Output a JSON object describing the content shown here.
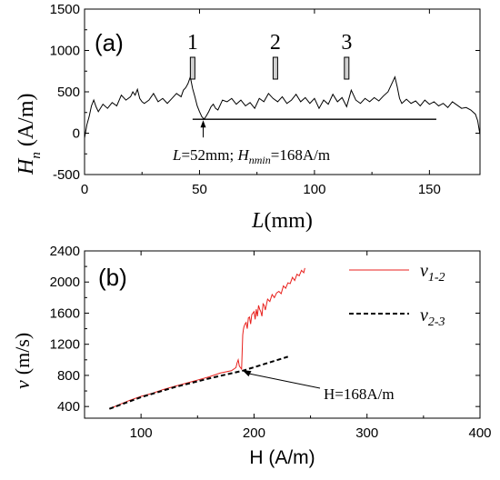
{
  "chart_data": [
    {
      "panel_label": "(a)",
      "type": "line",
      "xlabel": "L",
      "xlabel_unit": "(mm)",
      "ylabel_main": "H",
      "ylabel_sub": "n",
      "ylabel_unit": "(A/m)",
      "xlim": [
        0,
        172
      ],
      "ylim": [
        -500,
        1500
      ],
      "xticks": [
        "0",
        "50",
        "100",
        "150"
      ],
      "yticks": [
        "-500",
        "0",
        "500",
        "1000",
        "1500"
      ],
      "markers": [
        {
          "label": "1",
          "x": 47
        },
        {
          "label": "2",
          "x": 83
        },
        {
          "label": "3",
          "x": 114
        }
      ],
      "baseline": {
        "x_start": 47,
        "x_end": 153,
        "y": 168
      },
      "annotation": {
        "text_L": "L",
        "text_eq1": "=52mm; ",
        "text_H": "H",
        "text_sub": "nmin",
        "text_eq2": "=168A/m",
        "x": 52,
        "y": 168
      },
      "series": [
        {
          "x": [
            0,
            1,
            2,
            3,
            4,
            5,
            6,
            8,
            10,
            12,
            14,
            16,
            18,
            20,
            21,
            22,
            23,
            24,
            25,
            26,
            28,
            30,
            32,
            34,
            36,
            38,
            40,
            42,
            43,
            44,
            45,
            46,
            47,
            48,
            49,
            50,
            51,
            52,
            53,
            54,
            55,
            56,
            57,
            58,
            60,
            62,
            64,
            66,
            68,
            70,
            72,
            74,
            76,
            78,
            80,
            82,
            84,
            86,
            88,
            90,
            92,
            94,
            96,
            98,
            100,
            102,
            104,
            106,
            108,
            110,
            112,
            114,
            116,
            118,
            120,
            122,
            124,
            126,
            128,
            130,
            132,
            134,
            135,
            136,
            137,
            138,
            140,
            142,
            144,
            146,
            148,
            150,
            152,
            154,
            156,
            158,
            160,
            162,
            164,
            166,
            168,
            170,
            171,
            172
          ],
          "y": [
            -60,
            100,
            200,
            330,
            400,
            320,
            260,
            350,
            300,
            370,
            330,
            460,
            400,
            440,
            500,
            460,
            530,
            420,
            380,
            360,
            400,
            480,
            380,
            420,
            360,
            420,
            480,
            440,
            520,
            550,
            600,
            680,
            540,
            440,
            330,
            260,
            200,
            170,
            210,
            260,
            320,
            350,
            300,
            280,
            400,
            380,
            420,
            350,
            400,
            330,
            370,
            300,
            420,
            380,
            480,
            420,
            380,
            440,
            360,
            400,
            470,
            380,
            430,
            360,
            420,
            300,
            400,
            350,
            470,
            380,
            430,
            320,
            520,
            400,
            360,
            420,
            380,
            430,
            390,
            450,
            500,
            620,
            680,
            560,
            420,
            360,
            410,
            360,
            390,
            330,
            400,
            350,
            380,
            330,
            360,
            310,
            380,
            340,
            300,
            310,
            280,
            230,
            150,
            -20
          ]
        }
      ]
    },
    {
      "panel_label": "(b)",
      "type": "line",
      "xlabel": "H (A/m)",
      "ylabel_main": "v",
      "ylabel_unit": "(m/s)",
      "xlim": [
        50,
        400
      ],
      "ylim": [
        250,
        2400
      ],
      "xticks": [
        "100",
        "200",
        "300",
        "400"
      ],
      "yticks": [
        "400",
        "800",
        "1200",
        "1600",
        "2000",
        "2400"
      ],
      "annotation": {
        "text": "H=168A/m",
        "x": 188,
        "y": 880
      },
      "series": [
        {
          "name_main": "v",
          "name_sub": "1-2",
          "color": "#e8201c",
          "style": "solid",
          "x": [
            72,
            80,
            90,
            100,
            110,
            120,
            130,
            140,
            150,
            160,
            170,
            180,
            184,
            185,
            186,
            187,
            188,
            189,
            189.5,
            190,
            190.5,
            191,
            192,
            193,
            194,
            195,
            196,
            197,
            198,
            199,
            200,
            201,
            202,
            203,
            204,
            205,
            206,
            207,
            208,
            209,
            210,
            212,
            214,
            216,
            218,
            220,
            222,
            224,
            226,
            228,
            230,
            232,
            234,
            236,
            238,
            240,
            242,
            244,
            245
          ],
          "y": [
            370,
            420,
            480,
            530,
            570,
            620,
            660,
            700,
            740,
            780,
            830,
            860,
            900,
            960,
            1000,
            920,
            900,
            880,
            1100,
            1320,
            1380,
            1420,
            1460,
            1480,
            1400,
            1540,
            1550,
            1460,
            1580,
            1600,
            1620,
            1520,
            1650,
            1560,
            1700,
            1650,
            1620,
            1560,
            1720,
            1700,
            1640,
            1780,
            1750,
            1840,
            1800,
            1860,
            1880,
            1850,
            1950,
            1920,
            1990,
            1980,
            2060,
            2020,
            2100,
            2080,
            2150,
            2120,
            2180
          ]
        },
        {
          "name_main": "v",
          "name_sub": "2-3",
          "color": "#000000",
          "style": "dashed",
          "x": [
            72,
            100,
            130,
            160,
            190,
            210,
            230
          ],
          "y": [
            370,
            520,
            650,
            760,
            860,
            950,
            1040
          ]
        }
      ]
    }
  ]
}
